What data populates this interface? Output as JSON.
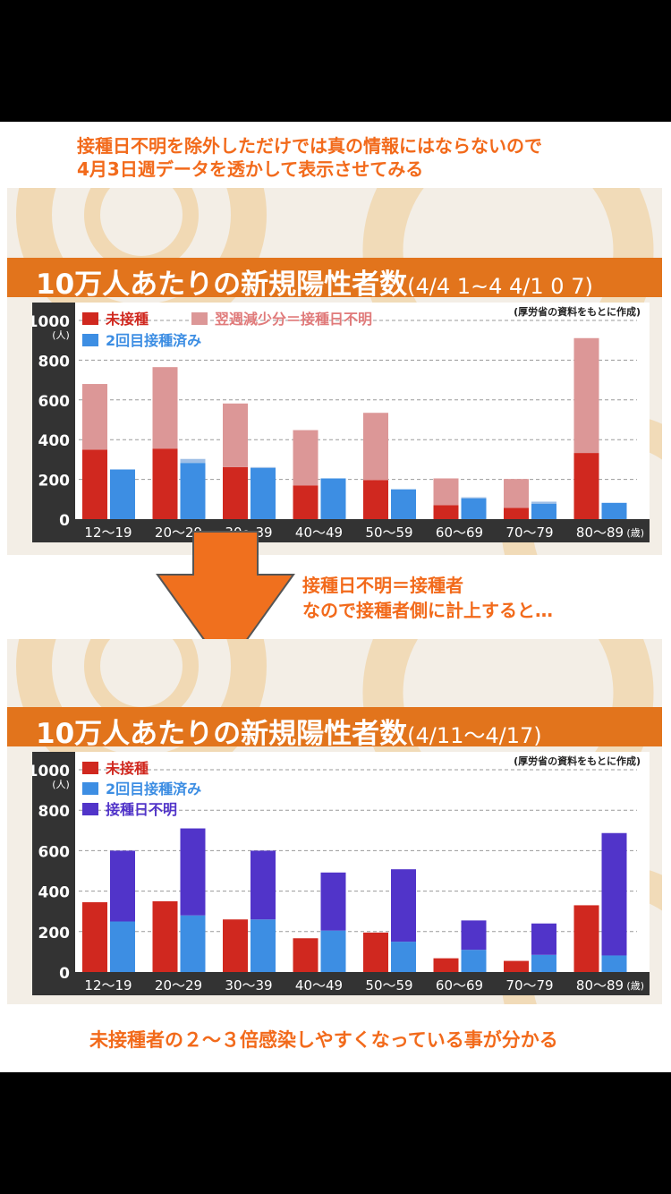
{
  "notes": {
    "top_line1": "接種日不明を除外しただけでは真の情報にはならないので",
    "top_line2": "4月3日週データを透かして表示させてみる",
    "mid_line1": "接種日不明＝接種者",
    "mid_line2": "なので接種者側に計上すると…",
    "bottom": "未接種者の２～３倍感染しやすくなっている事が分かる"
  },
  "colors": {
    "unvaccinated": "#d0281f",
    "unvaccinated_faded": "#dc9797",
    "vaccinated": "#3d8ee3",
    "vaccinated_faded": "#9fbfe6",
    "unknown": "#5134c9",
    "titlebar": "#e2741c",
    "axis_bg": "#333333",
    "note": "#f26a1b",
    "arrow": "#f0701e"
  },
  "chart_data": [
    {
      "type": "bar",
      "title": "10万人あたりの新規陽性者数",
      "title_range": "(4/4 1~4 4/1 0 7)",
      "source": "(厚労省の資料をもとに作成)",
      "y_unit": "(人)",
      "x_unit": "(歳)",
      "ylim": [
        0,
        1000
      ],
      "yticks": [
        0,
        200,
        400,
        600,
        800,
        1000
      ],
      "grid": true,
      "categories": [
        "12～19",
        "20～29",
        "30～39",
        "40～49",
        "50～59",
        "60～69",
        "70～79",
        "80～89"
      ],
      "legend": [
        "未接種",
        "翌週減少分＝接種日不明",
        "2回目接種済み"
      ],
      "series": [
        {
          "name": "未接種",
          "values": [
            350,
            355,
            262,
            170,
            197,
            70,
            57,
            333
          ]
        },
        {
          "name": "翌週減少分＝接種日不明",
          "values": [
            330,
            410,
            320,
            278,
            338,
            135,
            145,
            578
          ]
        },
        {
          "name": "2回目接種済み",
          "values": [
            250,
            283,
            257,
            205,
            150,
            105,
            78,
            82
          ]
        },
        {
          "name": "2回目接種済み (faded)",
          "values": [
            0,
            20,
            5,
            0,
            0,
            5,
            10,
            0
          ]
        }
      ]
    },
    {
      "type": "bar",
      "title": "10万人あたりの新規陽性者数",
      "title_range": "(4/11～4/17)",
      "source": "(厚労省の資料をもとに作成)",
      "y_unit": "(人)",
      "x_unit": "(歳)",
      "ylim": [
        0,
        1000
      ],
      "yticks": [
        0,
        200,
        400,
        600,
        800,
        1000
      ],
      "grid": true,
      "categories": [
        "12～19",
        "20～29",
        "30～39",
        "40～49",
        "50～59",
        "60～69",
        "70～79",
        "80～89"
      ],
      "legend": [
        "未接種",
        "2回目接種済み",
        "接種日不明"
      ],
      "series": [
        {
          "name": "未接種",
          "values": [
            345,
            350,
            260,
            167,
            195,
            68,
            55,
            330
          ]
        },
        {
          "name": "2回目接種済み",
          "values": [
            250,
            280,
            260,
            205,
            150,
            110,
            85,
            82
          ]
        },
        {
          "name": "接種日不明",
          "values": [
            350,
            430,
            340,
            287,
            358,
            145,
            155,
            605
          ]
        }
      ]
    }
  ]
}
